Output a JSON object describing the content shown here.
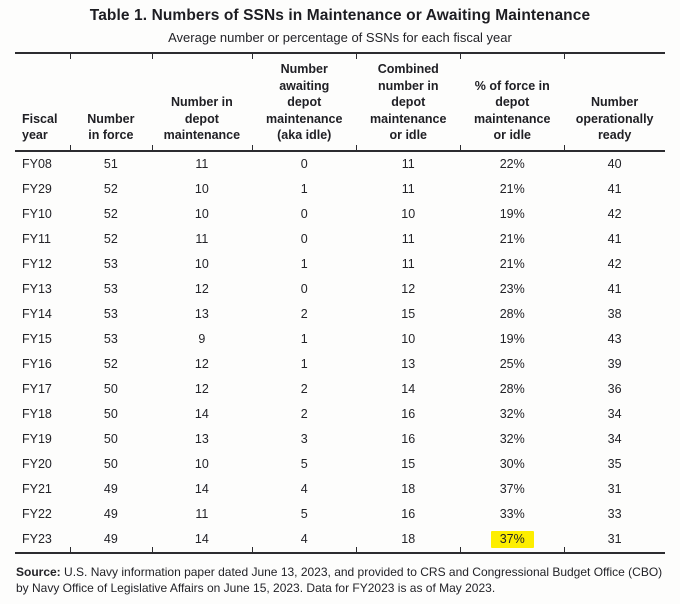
{
  "table": {
    "title": "Table 1. Numbers of SSNs in Maintenance or Awaiting Maintenance",
    "subtitle": "Average number or percentage of SSNs for each fiscal year",
    "columns": [
      "Fiscal\nyear",
      "Number\nin force",
      "Number in\ndepot\nmaintenance",
      "Number\nawaiting\ndepot\nmaintenance\n(aka idle)",
      "Combined\nnumber in\ndepot\nmaintenance\nor idle",
      "% of force in\ndepot\nmaintenance\nor idle",
      "Number\noperationally\nready"
    ],
    "rows": [
      [
        "FY08",
        "51",
        "11",
        "0",
        "11",
        "22%",
        "40"
      ],
      [
        "FY29",
        "52",
        "10",
        "1",
        "11",
        "21%",
        "41"
      ],
      [
        "FY10",
        "52",
        "10",
        "0",
        "10",
        "19%",
        "42"
      ],
      [
        "FY11",
        "52",
        "11",
        "0",
        "11",
        "21%",
        "41"
      ],
      [
        "FY12",
        "53",
        "10",
        "1",
        "11",
        "21%",
        "42"
      ],
      [
        "FY13",
        "53",
        "12",
        "0",
        "12",
        "23%",
        "41"
      ],
      [
        "FY14",
        "53",
        "13",
        "2",
        "15",
        "28%",
        "38"
      ],
      [
        "FY15",
        "53",
        "9",
        "1",
        "10",
        "19%",
        "43"
      ],
      [
        "FY16",
        "52",
        "12",
        "1",
        "13",
        "25%",
        "39"
      ],
      [
        "FY17",
        "50",
        "12",
        "2",
        "14",
        "28%",
        "36"
      ],
      [
        "FY18",
        "50",
        "14",
        "2",
        "16",
        "32%",
        "34"
      ],
      [
        "FY19",
        "50",
        "13",
        "3",
        "16",
        "32%",
        "34"
      ],
      [
        "FY20",
        "50",
        "10",
        "5",
        "15",
        "30%",
        "35"
      ],
      [
        "FY21",
        "49",
        "14",
        "4",
        "18",
        "37%",
        "31"
      ],
      [
        "FY22",
        "49",
        "11",
        "5",
        "16",
        "33%",
        "33"
      ],
      [
        "FY23",
        "49",
        "14",
        "4",
        "18",
        "37%",
        "31"
      ]
    ],
    "highlight": {
      "row_index": 15,
      "col_index": 5,
      "color": "#fdee00"
    }
  },
  "source": {
    "label": "Source:",
    "text": "U.S. Navy information paper dated June 13, 2023, and provided to CRS and Congressional Budget Office (CBO) by Navy Office of Legislative Affairs on June 15, 2023. Data for FY2023 is as of May 2023."
  }
}
